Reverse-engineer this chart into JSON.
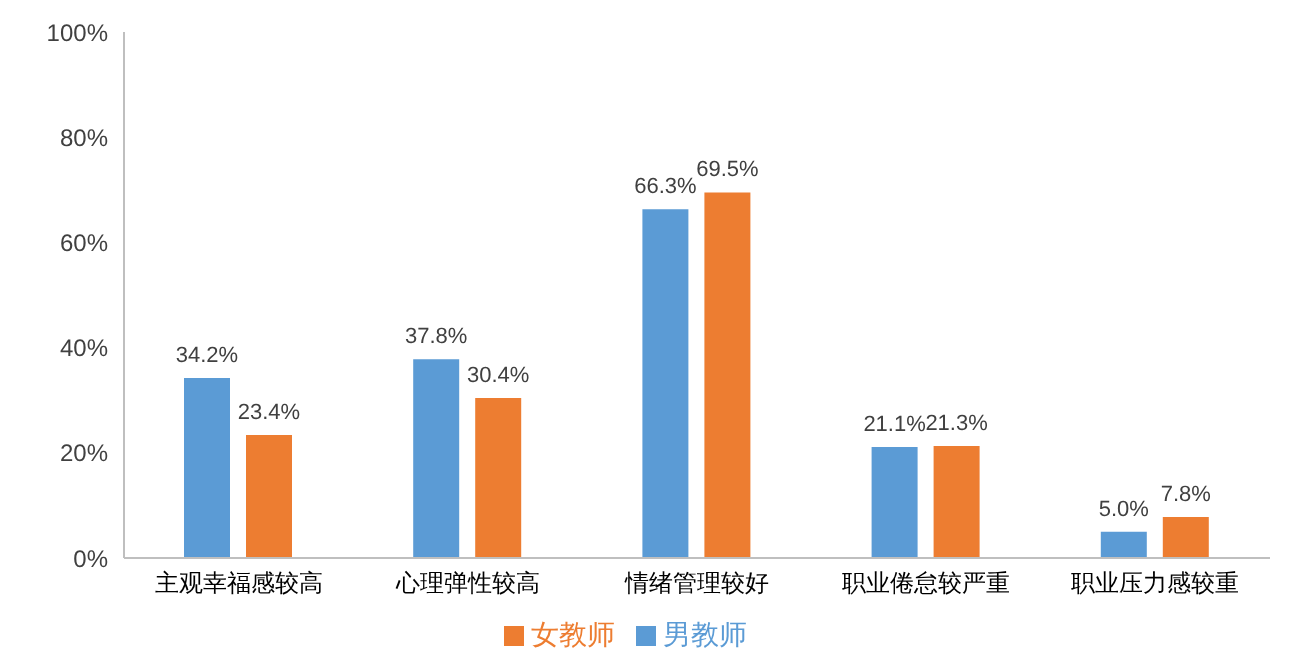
{
  "chart_data": {
    "type": "bar",
    "categories": [
      "主观幸福感较高",
      "心理弹性较高",
      "情绪管理较好",
      "职业倦怠较严重",
      "职业压力感较重"
    ],
    "series": [
      {
        "name": "男教师",
        "color": "#5b9bd5",
        "values": [
          34.2,
          37.8,
          66.3,
          21.1,
          5.0
        ],
        "value_labels": [
          "34.2%",
          "37.8%",
          "66.3%",
          "21.1%",
          "5.0%"
        ]
      },
      {
        "name": "女教师",
        "color": "#ed7d31",
        "values": [
          23.4,
          30.4,
          69.5,
          21.3,
          7.8
        ],
        "value_labels": [
          "23.4%",
          "30.4%",
          "69.5%",
          "21.3%",
          "7.8%"
        ]
      }
    ],
    "ylim": [
      0,
      100
    ],
    "yticks": [
      {
        "value": 0,
        "label": "0%"
      },
      {
        "value": 20,
        "label": "20%"
      },
      {
        "value": 40,
        "label": "40%"
      },
      {
        "value": 60,
        "label": "60%"
      },
      {
        "value": 80,
        "label": "80%"
      },
      {
        "value": 100,
        "label": "100%"
      }
    ],
    "grid": false,
    "legend": "bottom"
  }
}
